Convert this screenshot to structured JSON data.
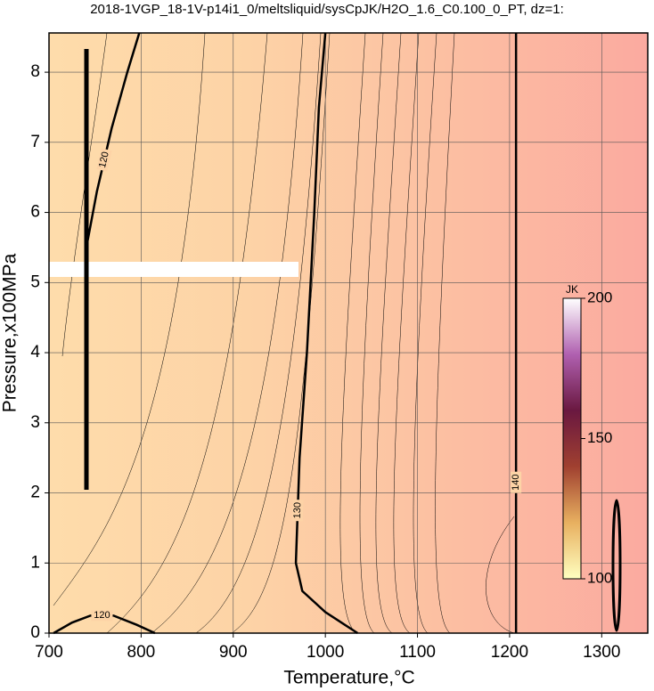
{
  "chart_data": {
    "type": "contour",
    "title": "2018-1VGP_18-1V-p14i1_0/meltsliquid/sysCpJK/H2O_1.6_C0.100_0_PT, dz=1:",
    "xlabel": "Temperature,°C",
    "ylabel": "Pressure,x100MPa",
    "xlim": [
      700,
      1350
    ],
    "ylim": [
      0,
      8.56
    ],
    "xticks": [
      700,
      800,
      900,
      1000,
      1100,
      1200,
      1300
    ],
    "yticks": [
      0,
      1,
      2,
      3,
      4,
      5,
      6,
      7,
      8
    ],
    "grid": true,
    "background_colors": [
      "#fedcab",
      "#fdd3a6",
      "#fcbfa2",
      "#fbaaa0"
    ],
    "contours": [
      {
        "level": 120,
        "x": [
          705,
          725,
          745,
          770,
          795,
          815
        ],
        "y": [
          0,
          0.15,
          0.25,
          0.25,
          0.12,
          0
        ]
      },
      {
        "level": 120,
        "x": [
          742,
          752,
          768,
          785,
          798
        ],
        "y": [
          5.6,
          6.3,
          7.2,
          8.0,
          8.56
        ]
      },
      {
        "level": 130,
        "x": [
          1035,
          1000,
          975,
          968,
          972,
          980,
          988,
          993,
          1000
        ],
        "y": [
          0,
          0.3,
          0.6,
          1.0,
          2.5,
          4.0,
          6.0,
          7.5,
          8.56
        ]
      },
      {
        "level": 140,
        "x": [
          1207,
          1207,
          1207
        ],
        "y": [
          0,
          4.3,
          8.56
        ]
      }
    ],
    "colorbar": {
      "label": "JK",
      "lim": [
        100,
        200
      ],
      "ticks": [
        100,
        150,
        200
      ],
      "colors": [
        "#ffffc0",
        "#e8b060",
        "#a04030",
        "#6a1840",
        "#b060b0",
        "#ffffff"
      ]
    }
  }
}
